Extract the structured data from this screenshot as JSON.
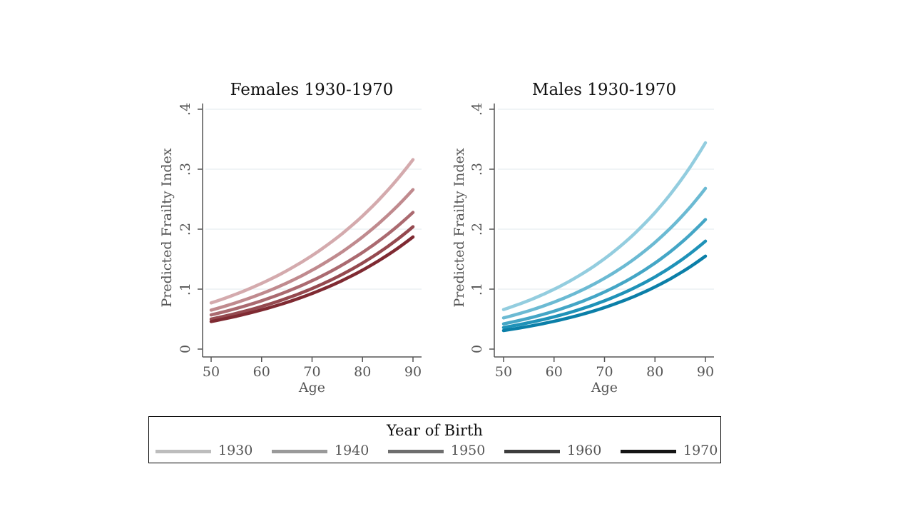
{
  "chart_data": [
    {
      "type": "line",
      "title": "Females 1930-1970",
      "xlabel": "Age",
      "ylabel": "Predicted Frailty Index",
      "xlim": [
        50,
        90
      ],
      "ylim": [
        0,
        0.4
      ],
      "x_ticks": [
        "50",
        "60",
        "70",
        "80",
        "90"
      ],
      "y_ticks": [
        "0",
        ".1",
        ".2",
        ".3",
        ".4"
      ],
      "grid": true,
      "x": [
        50,
        90
      ],
      "series": [
        {
          "name": "1930",
          "start": 0.077,
          "end": 0.316,
          "color": "#d4aaad"
        },
        {
          "name": "1940",
          "start": 0.065,
          "end": 0.266,
          "color": "#c08a8e"
        },
        {
          "name": "1950",
          "start": 0.057,
          "end": 0.228,
          "color": "#ab6a70"
        },
        {
          "name": "1960",
          "start": 0.05,
          "end": 0.204,
          "color": "#95494f"
        },
        {
          "name": "1970",
          "start": 0.046,
          "end": 0.187,
          "color": "#7f2a32"
        }
      ]
    },
    {
      "type": "line",
      "title": "Males 1930-1970",
      "xlabel": "Age",
      "ylabel": "Predicted Frailty Index",
      "xlim": [
        50,
        90
      ],
      "ylim": [
        0,
        0.4
      ],
      "x_ticks": [
        "50",
        "60",
        "70",
        "80",
        "90"
      ],
      "y_ticks": [
        "0",
        ".1",
        ".2",
        ".3",
        ".4"
      ],
      "grid": true,
      "x": [
        50,
        90
      ],
      "series": [
        {
          "name": "1930",
          "start": 0.066,
          "end": 0.344,
          "color": "#93cddf"
        },
        {
          "name": "1940",
          "start": 0.052,
          "end": 0.268,
          "color": "#6bbad3"
        },
        {
          "name": "1950",
          "start": 0.042,
          "end": 0.216,
          "color": "#44a6c6"
        },
        {
          "name": "1960",
          "start": 0.036,
          "end": 0.18,
          "color": "#1f92b8"
        },
        {
          "name": "1970",
          "start": 0.031,
          "end": 0.155,
          "color": "#0b7fa8"
        }
      ]
    }
  ],
  "legend": {
    "title": "Year of Birth",
    "placement": "bottom",
    "items": [
      {
        "label": "1930",
        "color": "#bdbdbd"
      },
      {
        "label": "1940",
        "color": "#9a9a9a"
      },
      {
        "label": "1950",
        "color": "#6e6e6e"
      },
      {
        "label": "1960",
        "color": "#3d3d3d"
      },
      {
        "label": "1970",
        "color": "#151515"
      }
    ]
  }
}
